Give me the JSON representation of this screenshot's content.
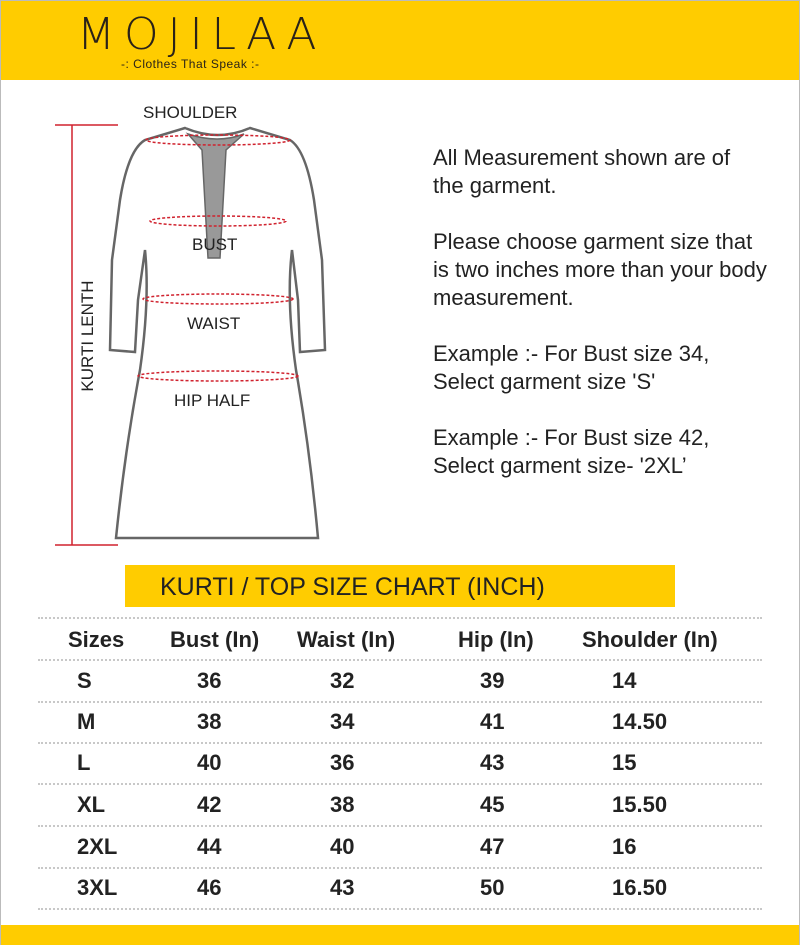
{
  "brand": {
    "name": "MOJILAA",
    "tagline": "-: Clothes That Speak :-"
  },
  "diagram": {
    "labels": {
      "shoulder": "SHOULDER",
      "bust": "BUST",
      "waist": "WAIST",
      "hip": "HIP HALF",
      "length": "KURTI LENTH"
    }
  },
  "info": {
    "paragraphs": [
      "All Measurement shown are of the garment.",
      "Please choose garment size that is two inches more than your body measurement.",
      "Example :- For Bust size 34, Select garment size 'S'",
      "Example :- For Bust size 42, Select garment size- '2XL’"
    ]
  },
  "colors": {
    "accent": "#FFCC00",
    "measure": "#d0222e"
  },
  "table": {
    "title": "KURTI / TOP SIZE CHART (INCH)",
    "headers": [
      "Sizes",
      "Bust (In)",
      "Waist (In)",
      "Hip (In)",
      "Shoulder (In)"
    ],
    "rows": [
      [
        "S",
        "36",
        "32",
        "39",
        "14"
      ],
      [
        "M",
        "38",
        "34",
        "41",
        "14.50"
      ],
      [
        "L",
        "40",
        "36",
        "43",
        "15"
      ],
      [
        "XL",
        "42",
        "38",
        "45",
        "15.50"
      ],
      [
        "2XL",
        "44",
        "40",
        "47",
        "16"
      ],
      [
        "3XL",
        "46",
        "43",
        "50",
        "16.50"
      ]
    ]
  }
}
